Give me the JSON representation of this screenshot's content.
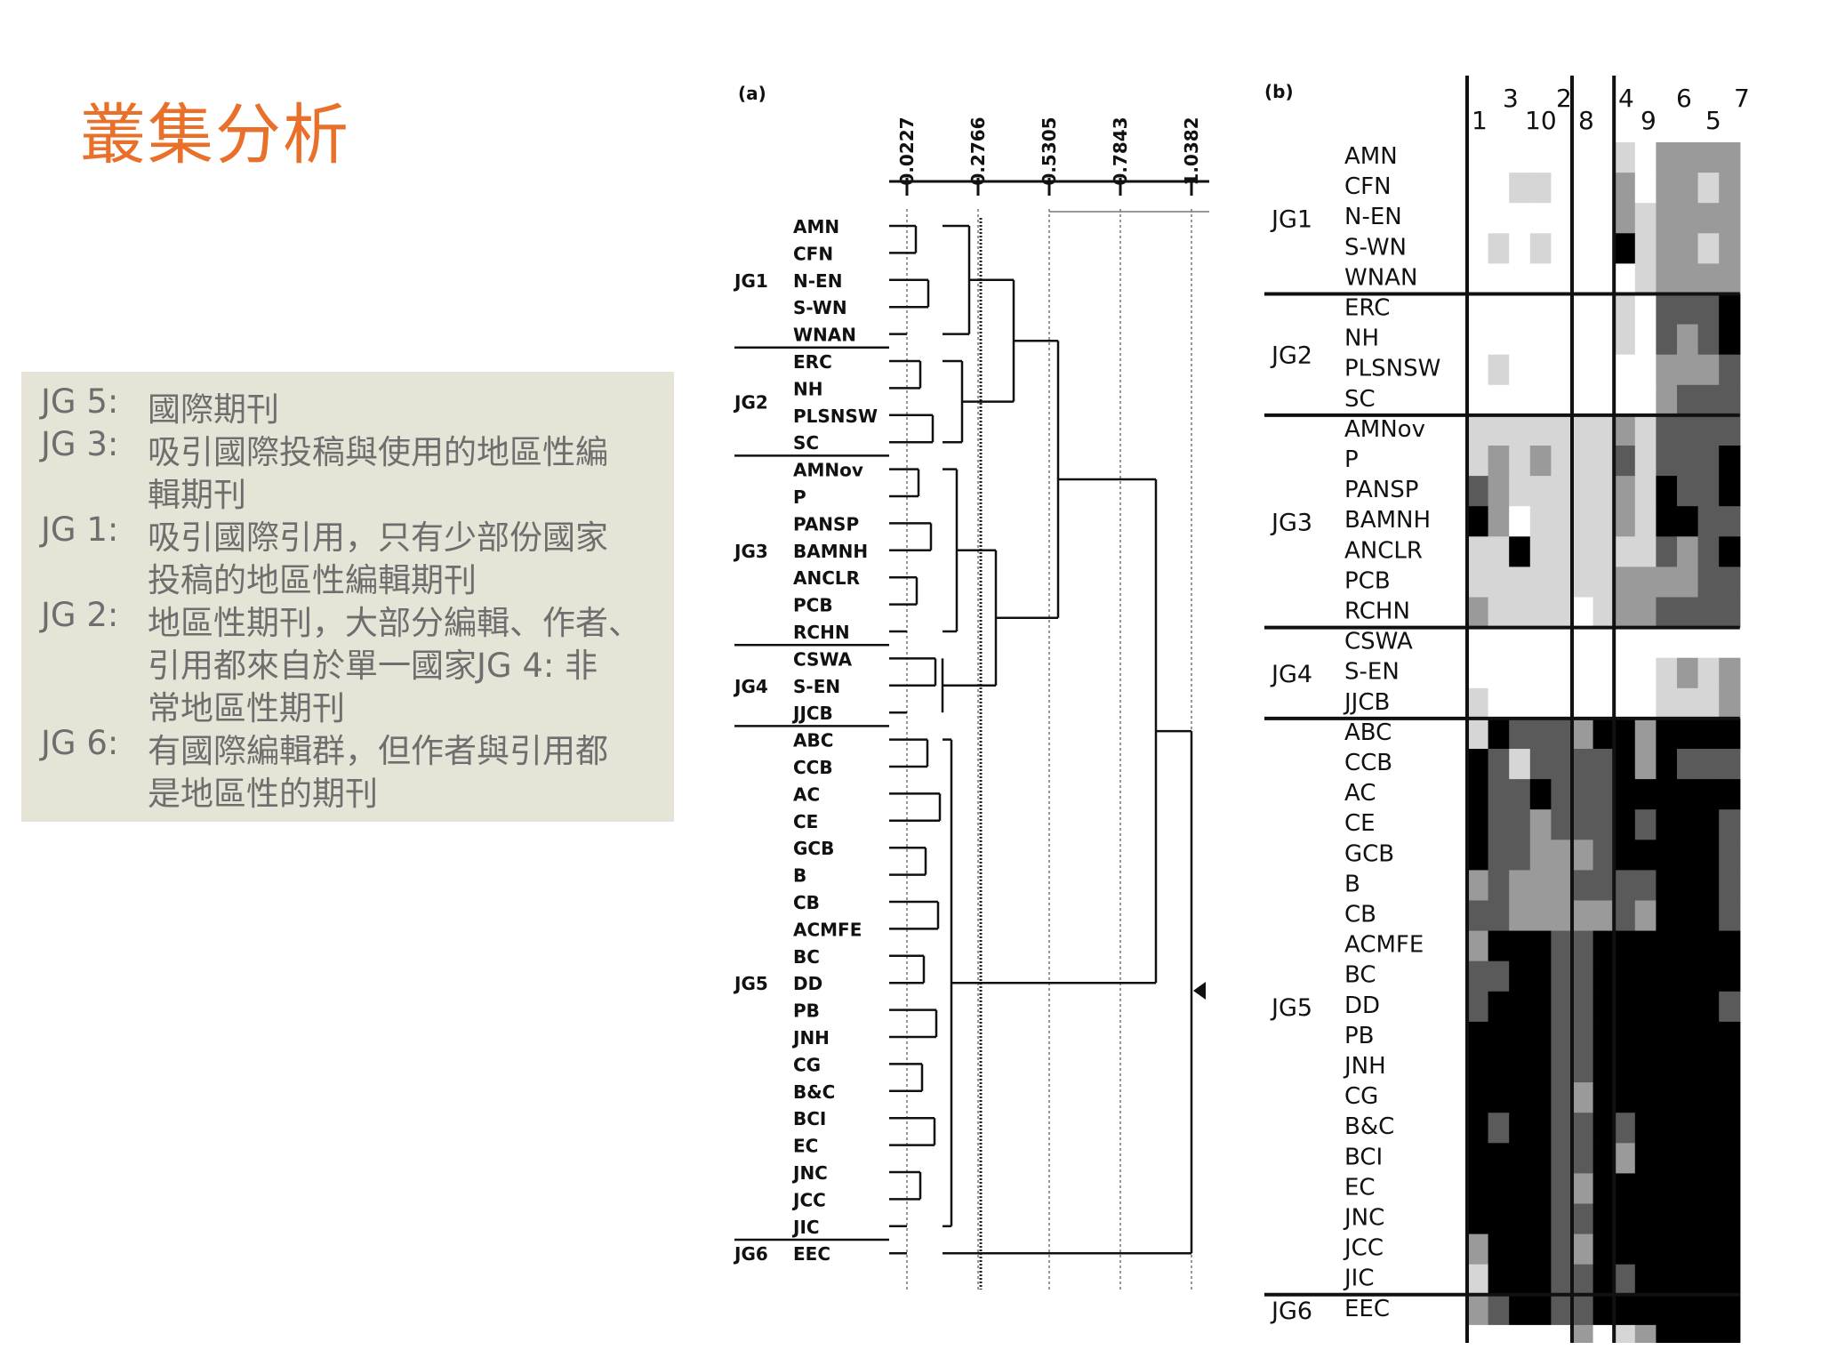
{
  "title": "叢集分析",
  "legend": [
    {
      "code": "JG 5:",
      "lines": [
        "國際期刊"
      ]
    },
    {
      "code": "JG 3:",
      "lines": [
        "吸引國際投稿與使用的地區性編",
        "輯期刊"
      ]
    },
    {
      "code": "JG 1:",
      "lines": [
        "吸引國際引用，只有少部份國家",
        "投稿的地區性編輯期刊"
      ]
    },
    {
      "code": "JG 2:",
      "lines": [
        "地區性期刊，大部分編輯、作者、",
        "引用都來自於單一國家JG 4:  非",
        "常地區性期刊"
      ]
    },
    {
      "code": "JG 6:",
      "lines": [
        "有國際編輯群，但作者與引用都",
        "是地區性的期刊"
      ]
    }
  ],
  "dendrogram": {
    "panel_label": "(a)",
    "ticks": [
      "0.0227",
      "0.2766",
      "0.5305",
      "0.7843",
      "1.0382"
    ],
    "marker_icon": "triangle-left-icon"
  },
  "heatmap": {
    "panel_label": "(b)",
    "column_groups": [
      {
        "labels": [
          "1",
          "3",
          "10",
          "2",
          "8"
        ]
      },
      {
        "labels": [
          "4",
          "9"
        ]
      },
      {
        "labels": [
          "6",
          "5",
          "7"
        ]
      }
    ],
    "cell_colors": {
      "0": "#ffffff",
      "1": "#d6d6d6",
      "2": "#9a9a9a",
      "3": "#5a5a5a",
      "4": "#000000"
    }
  },
  "groups": [
    {
      "name": "JG1",
      "items": [
        "AMN",
        "CFN",
        "N-EN",
        "S-WN",
        "WNAN"
      ]
    },
    {
      "name": "JG2",
      "items": [
        "ERC",
        "NH",
        "PLSNSW",
        "SC"
      ]
    },
    {
      "name": "JG3",
      "items": [
        "AMNov",
        "P",
        "PANSP",
        "BAMNH",
        "ANCLR",
        "PCB",
        "RCHN"
      ]
    },
    {
      "name": "JG4",
      "items": [
        "CSWA",
        "S-EN",
        "JJCB"
      ]
    },
    {
      "name": "JG5",
      "items": [
        "ABC",
        "CCB",
        "AC",
        "CE",
        "GCB",
        "B",
        "CB",
        "ACMFE",
        "BC",
        "DD",
        "PB",
        "JNH",
        "CG",
        "B&C",
        "BCI",
        "EC",
        "JNC",
        "JCC",
        "JIC"
      ]
    },
    {
      "name": "JG6",
      "items": [
        "EEC"
      ]
    }
  ],
  "heat_rows": [
    [
      0,
      0,
      0,
      0,
      0,
      0,
      0,
      1,
      0,
      2,
      2,
      2,
      2
    ],
    [
      0,
      0,
      1,
      1,
      0,
      0,
      0,
      2,
      0,
      2,
      2,
      1,
      2
    ],
    [
      0,
      0,
      0,
      0,
      0,
      0,
      0,
      2,
      1,
      2,
      2,
      2,
      2
    ],
    [
      0,
      1,
      0,
      1,
      0,
      0,
      0,
      4,
      1,
      2,
      2,
      1,
      2
    ],
    [
      0,
      0,
      0,
      0,
      0,
      0,
      0,
      0,
      1,
      2,
      2,
      2,
      2
    ],
    [
      0,
      0,
      0,
      0,
      0,
      0,
      0,
      1,
      0,
      3,
      3,
      3,
      4
    ],
    [
      0,
      0,
      0,
      0,
      0,
      0,
      0,
      1,
      0,
      3,
      2,
      3,
      4
    ],
    [
      0,
      1,
      0,
      0,
      0,
      0,
      0,
      0,
      0,
      2,
      2,
      2,
      3
    ],
    [
      0,
      0,
      0,
      0,
      0,
      0,
      0,
      0,
      0,
      2,
      3,
      3,
      3
    ],
    [
      1,
      1,
      1,
      1,
      1,
      1,
      1,
      2,
      1,
      3,
      3,
      3,
      3
    ],
    [
      1,
      2,
      1,
      2,
      1,
      1,
      1,
      3,
      1,
      3,
      3,
      3,
      4
    ],
    [
      3,
      2,
      1,
      1,
      1,
      1,
      1,
      2,
      1,
      4,
      3,
      3,
      4
    ],
    [
      4,
      2,
      0,
      1,
      1,
      1,
      1,
      2,
      1,
      4,
      4,
      3,
      3
    ],
    [
      1,
      1,
      4,
      1,
      1,
      1,
      1,
      1,
      1,
      3,
      2,
      3,
      4
    ],
    [
      1,
      1,
      1,
      1,
      1,
      1,
      1,
      2,
      2,
      2,
      2,
      3,
      3
    ],
    [
      2,
      1,
      1,
      1,
      1,
      0,
      1,
      2,
      2,
      3,
      3,
      3,
      3
    ],
    [
      0,
      0,
      0,
      0,
      0,
      0,
      0,
      0,
      0,
      0,
      0,
      0,
      0
    ],
    [
      0,
      0,
      0,
      0,
      0,
      0,
      0,
      0,
      0,
      1,
      2,
      1,
      2
    ],
    [
      1,
      0,
      0,
      0,
      0,
      0,
      0,
      0,
      0,
      1,
      1,
      1,
      2
    ],
    [
      1,
      4,
      3,
      3,
      3,
      2,
      4,
      4,
      2,
      4,
      4,
      4,
      4
    ],
    [
      4,
      3,
      1,
      3,
      3,
      3,
      3,
      4,
      2,
      4,
      3,
      3,
      3
    ],
    [
      4,
      3,
      3,
      4,
      3,
      3,
      3,
      4,
      4,
      4,
      4,
      4,
      4
    ],
    [
      4,
      3,
      3,
      2,
      3,
      3,
      3,
      4,
      3,
      4,
      4,
      4,
      3
    ],
    [
      4,
      3,
      3,
      2,
      2,
      2,
      3,
      4,
      4,
      4,
      4,
      4,
      3
    ],
    [
      2,
      3,
      2,
      2,
      2,
      3,
      3,
      3,
      3,
      4,
      4,
      4,
      3
    ],
    [
      3,
      3,
      2,
      2,
      2,
      2,
      2,
      3,
      2,
      4,
      4,
      4,
      3
    ],
    [
      2,
      4,
      4,
      4,
      3,
      3,
      4,
      4,
      4,
      4,
      4,
      4,
      4
    ],
    [
      3,
      3,
      4,
      4,
      3,
      3,
      4,
      4,
      4,
      4,
      4,
      4,
      4
    ],
    [
      3,
      4,
      4,
      4,
      3,
      3,
      4,
      4,
      4,
      4,
      4,
      4,
      3
    ],
    [
      4,
      4,
      4,
      4,
      3,
      3,
      4,
      4,
      4,
      4,
      4,
      4,
      4
    ],
    [
      4,
      4,
      4,
      4,
      3,
      3,
      4,
      4,
      4,
      4,
      4,
      4,
      4
    ],
    [
      4,
      4,
      4,
      4,
      3,
      2,
      4,
      4,
      4,
      4,
      4,
      4,
      4
    ],
    [
      4,
      3,
      4,
      4,
      3,
      3,
      4,
      3,
      4,
      4,
      4,
      4,
      4
    ],
    [
      4,
      4,
      4,
      4,
      3,
      3,
      4,
      2,
      4,
      4,
      4,
      4,
      4
    ],
    [
      4,
      4,
      4,
      4,
      3,
      2,
      4,
      4,
      4,
      4,
      4,
      4,
      4
    ],
    [
      4,
      4,
      4,
      4,
      3,
      3,
      4,
      4,
      4,
      4,
      4,
      4,
      4
    ],
    [
      2,
      4,
      4,
      4,
      3,
      2,
      4,
      4,
      4,
      4,
      4,
      4,
      4
    ],
    [
      1,
      4,
      4,
      4,
      3,
      3,
      4,
      3,
      4,
      4,
      4,
      4,
      4
    ],
    [
      2,
      3,
      4,
      4,
      3,
      3,
      4,
      4,
      4,
      4,
      4,
      4,
      4
    ],
    [
      0,
      0,
      0,
      0,
      0,
      2,
      0,
      1,
      2,
      4,
      4,
      4,
      4
    ]
  ]
}
